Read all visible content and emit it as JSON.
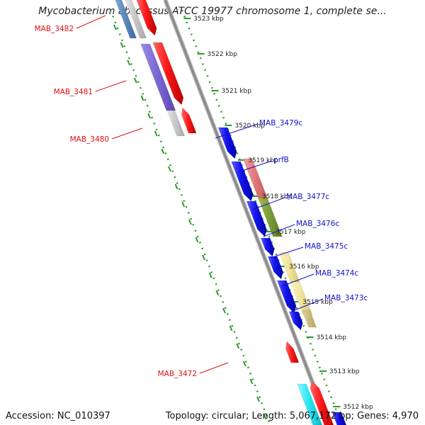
{
  "title": "Mycobacterium abscessus ATCC 19977 chromosome 1, complete se...",
  "footer": {
    "accession_label": "Accession:",
    "accession": "NC_010397",
    "topology_label": "Topology:",
    "topology": "circular",
    "length_label": "Length:",
    "length": "5,067,172 bp",
    "genes_label": "Genes:",
    "genes": "4,970"
  },
  "colors": {
    "backbone": "#8c8c8c",
    "grid_dot": "#2a9a2a",
    "forward_gene": "#ee1111",
    "reverse_gene": "#1111dd",
    "gene_label_forward": "#dd1111",
    "gene_label_reverse": "#1111cc"
  },
  "ticks": [
    "3523 kbp",
    "3522 kbp",
    "3521 kbp",
    "3520 kbp",
    "3519 kbp",
    "3518 kbp",
    "3517 kbp",
    "3516 kbp",
    "3515 kbp",
    "3514 kbp",
    "3513 kbp",
    "3512 kbp"
  ],
  "genes": [
    {
      "name": "MAB_3482",
      "strand": "forward"
    },
    {
      "name": "MAB_3481",
      "strand": "forward"
    },
    {
      "name": "MAB_3480",
      "strand": "forward"
    },
    {
      "name": "MAB_3479c",
      "strand": "reverse"
    },
    {
      "name": "prfB",
      "strand": "reverse"
    },
    {
      "name": "MAB_3477c",
      "strand": "reverse"
    },
    {
      "name": "MAB_3476c",
      "strand": "reverse"
    },
    {
      "name": "MAB_3475c",
      "strand": "reverse"
    },
    {
      "name": "MAB_3474c",
      "strand": "reverse"
    },
    {
      "name": "MAB_3473c",
      "strand": "reverse"
    },
    {
      "name": "MAB_3472",
      "strand": "forward"
    }
  ]
}
